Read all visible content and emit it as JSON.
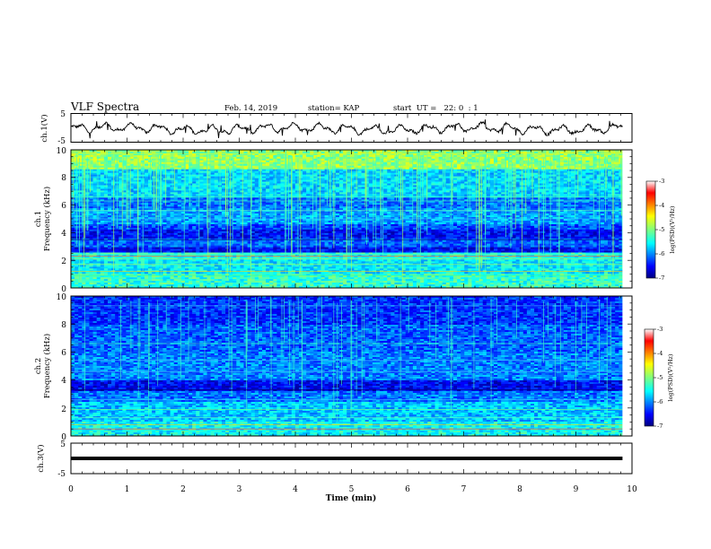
{
  "header": {
    "title": "VLF Spectra",
    "date": "Feb. 14, 2019",
    "station": "station= KAP",
    "start": "start  UT =   22: 0  : 1"
  },
  "chart_data": [
    {
      "type": "line",
      "name": "ch1-voltage",
      "ylabel": "ch.1(V)",
      "ylim": [
        -5,
        5
      ],
      "yticks": [
        "5",
        "-5"
      ],
      "xlim": [
        0,
        10
      ],
      "x_end": 9.83,
      "colors": {
        "line": "#000000"
      }
    },
    {
      "type": "heatmap",
      "name": "ch1-spectrogram",
      "ylabel_1": "ch.1",
      "ylabel_2": "Frequency (kHz)",
      "ylim": [
        0,
        10
      ],
      "yticks": [
        "0",
        "2",
        "4",
        "6",
        "8",
        "10"
      ],
      "xlim": [
        0,
        10
      ],
      "x_end": 9.83,
      "colorbar": {
        "label": "log(PSD)(V²/Hz)",
        "ticks": [
          "-3",
          "-4",
          "-5",
          "-6",
          "-7"
        ],
        "range": [
          -7,
          -3
        ]
      }
    },
    {
      "type": "heatmap",
      "name": "ch2-spectrogram",
      "ylabel_1": "ch.2",
      "ylabel_2": "Frequency (kHz)",
      "ylim": [
        0,
        10
      ],
      "yticks": [
        "0",
        "2",
        "4",
        "6",
        "8",
        "10"
      ],
      "xlim": [
        0,
        10
      ],
      "x_end": 9.83,
      "colorbar": {
        "label": "log(PSD)(V²/Hz)",
        "ticks": [
          "-3",
          "-4",
          "-5",
          "-6",
          "-7"
        ],
        "range": [
          -7,
          -3
        ]
      }
    },
    {
      "type": "line",
      "name": "ch3-voltage",
      "ylabel": "ch.3(V)",
      "ylim": [
        -5,
        5
      ],
      "yticks": [
        "5",
        "-5"
      ],
      "xlim": [
        0,
        10
      ],
      "x_end": 9.83,
      "value": 0,
      "colors": {
        "line": "#000000"
      }
    }
  ],
  "xaxis": {
    "label": "Time (min)",
    "ticks": [
      "0",
      "1",
      "2",
      "3",
      "4",
      "5",
      "6",
      "7",
      "8",
      "9",
      "10"
    ]
  }
}
